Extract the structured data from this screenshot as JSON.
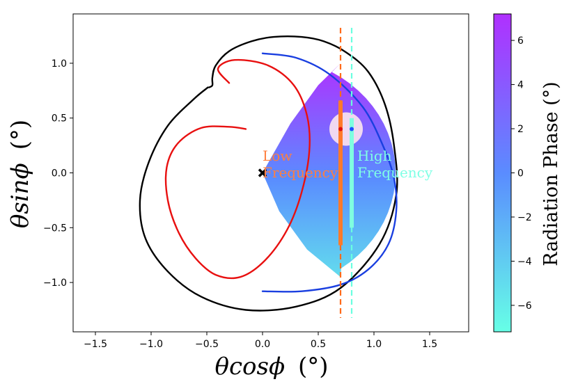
{
  "chart_data": {
    "type": "scatter",
    "title": "",
    "xlabel_main": "θcosϕ",
    "xlabel_unit": "(°)",
    "ylabel_main": "θsinϕ",
    "ylabel_unit": "(°)",
    "xlim": [
      -1.7,
      1.85
    ],
    "ylim": [
      -1.45,
      1.45
    ],
    "xticks": [
      -1.5,
      -1.0,
      -0.5,
      0.0,
      0.5,
      1.0,
      1.5
    ],
    "xtick_labels": [
      "−1.5",
      "−1.0",
      "−0.5",
      "0.0",
      "0.5",
      "1.0",
      "1.5"
    ],
    "yticks": [
      -1.0,
      -0.5,
      0.0,
      0.5,
      1.0
    ],
    "ytick_labels": [
      "−1.0",
      "−0.5",
      "0.0",
      "0.5",
      "1.0"
    ],
    "colorbar": {
      "label": "Radiation Phase (°)",
      "range": [
        -7.2,
        7.2
      ],
      "ticks": [
        -6,
        -4,
        -2,
        0,
        2,
        4,
        6
      ],
      "tick_labels": [
        "−6",
        "−4",
        "−2",
        "0",
        "2",
        "4",
        "6"
      ],
      "color_low": "#66ffe6",
      "color_mid": "#5a8cff",
      "color_high": "#b030ff"
    },
    "annotations": [
      {
        "name": "low",
        "lines": [
          "Low",
          "Frequency"
        ],
        "color": "#ff7f3f",
        "x": 0.0,
        "y": 0.2
      },
      {
        "name": "high",
        "lines": [
          "High",
          "Frequency"
        ],
        "color": "#7fffe5",
        "x": 0.85,
        "y": 0.2
      }
    ],
    "markers": {
      "center": {
        "x": 0.0,
        "y": 0.0,
        "symbol": "X",
        "color": "#000000"
      },
      "red_dot": {
        "x": 0.7,
        "y": 0.4,
        "color": "#e01010"
      },
      "blue_dot": {
        "x": 0.8,
        "y": 0.4,
        "color": "#2050ff"
      },
      "pink_circle": {
        "cx": 0.75,
        "cy": 0.4,
        "r": 0.15,
        "color": "#f0d8f0"
      }
    },
    "vlines": [
      {
        "x": 0.7,
        "color": "#ff6a1a",
        "style": "dashed"
      },
      {
        "x": 0.8,
        "color": "#6affe0",
        "style": "dashed"
      }
    ],
    "vbars": [
      {
        "x": 0.7,
        "y0": -0.66,
        "y1": 0.66,
        "color": "#ff7a2a"
      },
      {
        "x": 0.8,
        "y0": -0.5,
        "y1": 0.5,
        "color": "#7fffe0"
      }
    ],
    "series": [
      {
        "name": "black",
        "color": "#000000",
        "x": [
          -0.49,
          -0.62,
          -0.85,
          -1.02,
          -1.1,
          -1.05,
          -0.85,
          -0.55,
          -0.15,
          0.3,
          0.7,
          1.05,
          1.2,
          1.18,
          1.1,
          0.95,
          0.75,
          0.55,
          0.35,
          0.1,
          -0.1,
          -0.3,
          -0.42,
          -0.45,
          -0.45,
          -0.48
        ],
        "y": [
          0.78,
          0.67,
          0.43,
          0.1,
          -0.25,
          -0.6,
          -0.9,
          -1.13,
          -1.25,
          -1.22,
          -1.05,
          -0.65,
          -0.2,
          0.25,
          0.62,
          0.92,
          1.1,
          1.2,
          1.24,
          1.24,
          1.2,
          1.11,
          0.98,
          0.87,
          0.8,
          0.78
        ]
      },
      {
        "name": "red",
        "color": "#e81010",
        "x": [
          -0.3,
          -0.4,
          -0.25,
          0.05,
          0.28,
          0.4,
          0.42,
          0.35,
          0.22,
          0.02,
          -0.2,
          -0.42,
          -0.6,
          -0.75,
          -0.85,
          -0.86,
          -0.76,
          -0.55,
          -0.3,
          -0.15
        ],
        "y": [
          0.82,
          0.95,
          1.03,
          0.98,
          0.8,
          0.52,
          0.2,
          -0.18,
          -0.52,
          -0.8,
          -0.95,
          -0.93,
          -0.78,
          -0.55,
          -0.25,
          0.05,
          0.27,
          0.41,
          0.42,
          0.4
        ]
      },
      {
        "name": "blue",
        "color": "#1a3fe0",
        "x": [
          0.0,
          0.3,
          0.6,
          0.9,
          1.08,
          1.18,
          1.2,
          1.13,
          0.95,
          0.7,
          0.35,
          0.0
        ],
        "y": [
          1.09,
          1.05,
          0.9,
          0.6,
          0.25,
          -0.05,
          -0.35,
          -0.65,
          -0.88,
          -1.02,
          -1.08,
          -1.08
        ]
      }
    ]
  }
}
